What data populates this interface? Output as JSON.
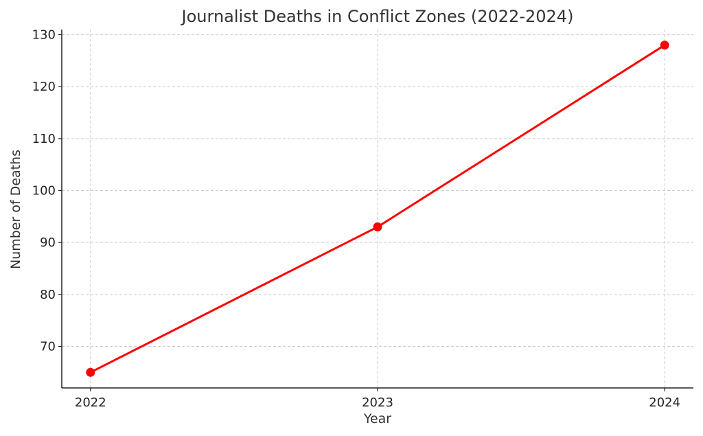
{
  "chart_data": {
    "type": "line",
    "title": "Journalist Deaths in Conflict Zones (2022-2024)",
    "xlabel": "Year",
    "ylabel": "Number of Deaths",
    "x": [
      2022,
      2023,
      2024
    ],
    "x_tick_labels": [
      "2022",
      "2023",
      "2024"
    ],
    "y_ticks": [
      70,
      80,
      90,
      100,
      110,
      120,
      130
    ],
    "y_tick_labels": [
      "70",
      "80",
      "90",
      "100",
      "110",
      "120",
      "130"
    ],
    "xlim": [
      2021.9,
      2024.1
    ],
    "ylim": [
      62,
      131
    ],
    "grid": true,
    "series": [
      {
        "values": [
          65,
          93,
          128
        ],
        "color": "#ff0000",
        "marker": "circle"
      }
    ],
    "decoration": {
      "icon": "bookmark-chevron-icon",
      "colors": [
        "#111111",
        "#8b1a1a"
      ]
    }
  }
}
